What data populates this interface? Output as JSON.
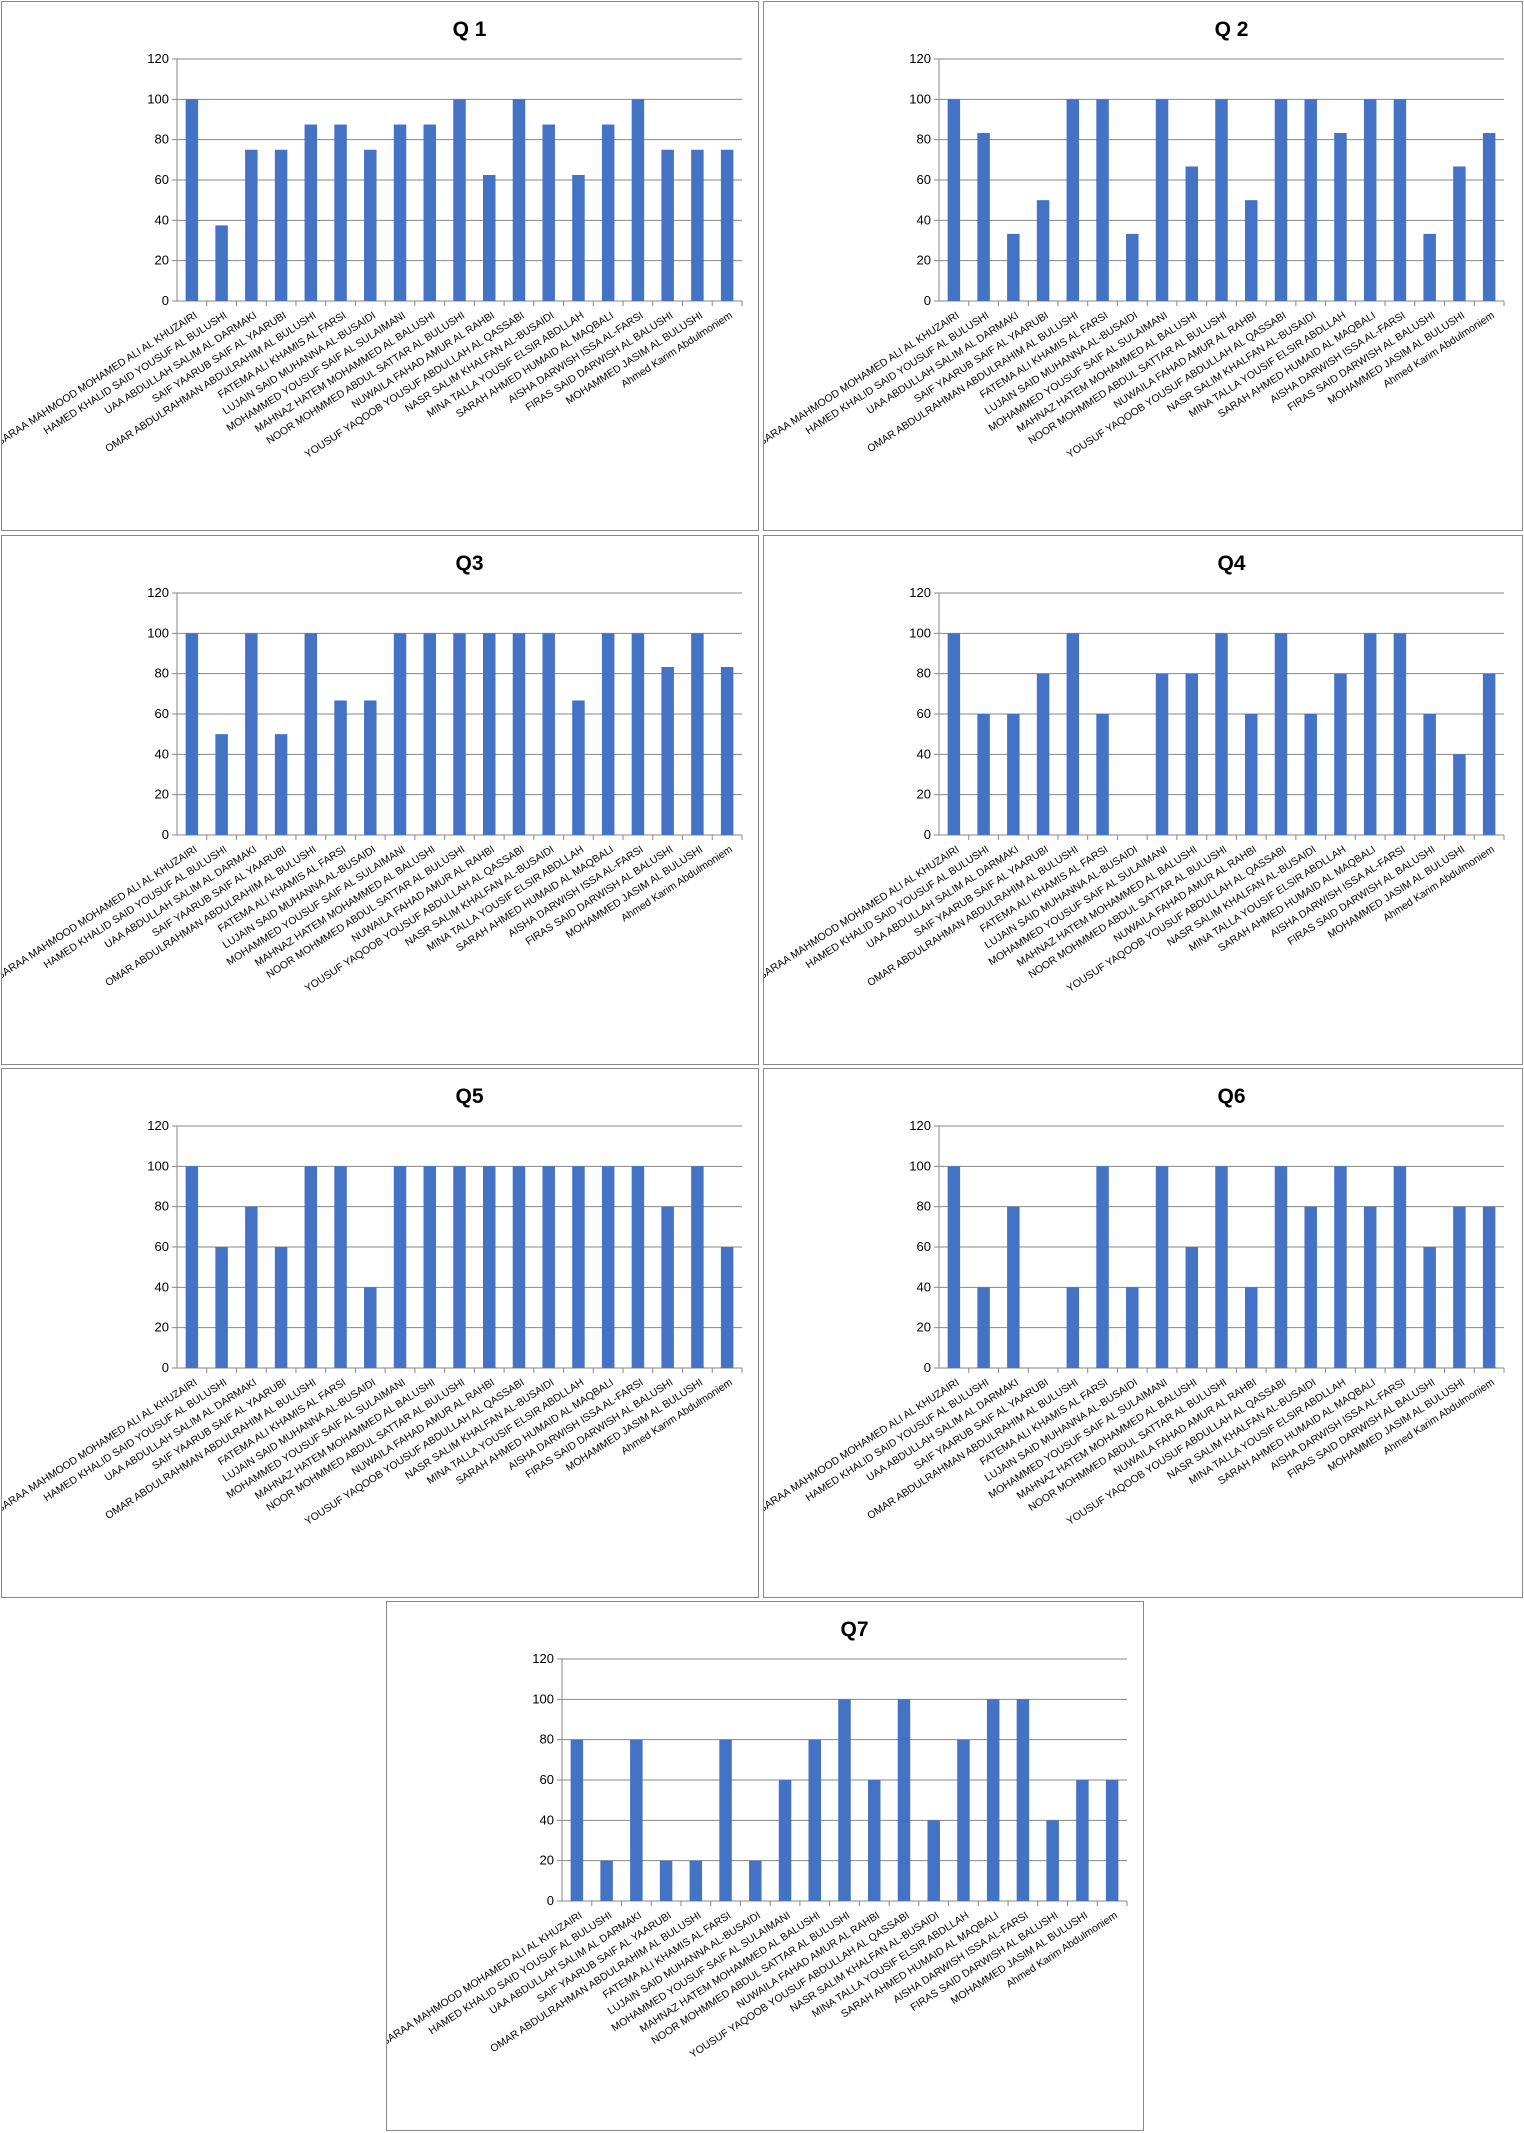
{
  "colors": {
    "bar": "#4472C4",
    "grid": "#878787",
    "border": "#888888"
  },
  "chart_data": [
    {
      "type": "bar",
      "title": "Q 1",
      "ylim": [
        0,
        120
      ],
      "yticks": [
        0,
        20,
        40,
        60,
        80,
        100,
        120
      ],
      "grid": true,
      "series": [
        {
          "values": [
            100,
            37.5,
            75,
            75,
            87.5,
            87.5,
            75,
            87.5,
            87.5,
            100,
            62.5,
            100,
            87.5,
            62.5,
            87.5,
            100,
            75,
            75,
            75
          ]
        }
      ]
    },
    {
      "type": "bar",
      "title": "Q 2",
      "ylim": [
        0,
        120
      ],
      "yticks": [
        0,
        20,
        40,
        60,
        80,
        100,
        120
      ],
      "grid": true,
      "series": [
        {
          "values": [
            100,
            83.3,
            33.3,
            50,
            100,
            100,
            33.3,
            100,
            66.7,
            100,
            50,
            100,
            100,
            83.3,
            100,
            100,
            33.3,
            66.7,
            83.3
          ]
        }
      ]
    },
    {
      "type": "bar",
      "title": "Q3",
      "ylim": [
        0,
        120
      ],
      "yticks": [
        0,
        20,
        40,
        60,
        80,
        100,
        120
      ],
      "grid": true,
      "series": [
        {
          "values": [
            100,
            50,
            100,
            50,
            100,
            66.7,
            66.7,
            100,
            100,
            100,
            100,
            100,
            100,
            66.7,
            100,
            100,
            83.3,
            100,
            83.3
          ]
        }
      ]
    },
    {
      "type": "bar",
      "title": "Q4",
      "ylim": [
        0,
        120
      ],
      "yticks": [
        0,
        20,
        40,
        60,
        80,
        100,
        120
      ],
      "grid": true,
      "series": [
        {
          "values": [
            100,
            60,
            60,
            80,
            100,
            60,
            0,
            80,
            80,
            100,
            60,
            100,
            60,
            80,
            100,
            100,
            60,
            40,
            80
          ]
        }
      ]
    },
    {
      "type": "bar",
      "title": "Q5",
      "ylim": [
        0,
        120
      ],
      "yticks": [
        0,
        20,
        40,
        60,
        80,
        100,
        120
      ],
      "grid": true,
      "series": [
        {
          "values": [
            100,
            60,
            80,
            60,
            100,
            100,
            40,
            100,
            100,
            100,
            100,
            100,
            100,
            100,
            100,
            100,
            80,
            100,
            60
          ]
        }
      ]
    },
    {
      "type": "bar",
      "title": "Q6",
      "ylim": [
        0,
        120
      ],
      "yticks": [
        0,
        20,
        40,
        60,
        80,
        100,
        120
      ],
      "grid": true,
      "series": [
        {
          "values": [
            100,
            40,
            80,
            0,
            40,
            100,
            40,
            100,
            60,
            100,
            40,
            100,
            80,
            100,
            80,
            100,
            60,
            80,
            80
          ]
        }
      ]
    },
    {
      "type": "bar",
      "title": "Q7",
      "ylim": [
        0,
        120
      ],
      "yticks": [
        0,
        20,
        40,
        60,
        80,
        100,
        120
      ],
      "grid": true,
      "series": [
        {
          "values": [
            80,
            20,
            80,
            20,
            20,
            80,
            20,
            60,
            80,
            100,
            60,
            100,
            40,
            80,
            100,
            100,
            40,
            60,
            60
          ]
        }
      ]
    }
  ],
  "categories": [
    "BARAA MAHMOOD MOHAMED ALI AL KHUZAIRI",
    "HAMED KHALID SAID YOUSUF AL BULUSHI",
    "UAA ABDULLAH SALIM AL DARMAKI",
    "SAIF YAARUB SAIF AL YAARUBI",
    "OMAR ABDULRAHMAN ABDULRAHIM AL BULUSHI",
    "FATEMA ALI KHAMIS AL FARSI",
    "LUJAIN SAID MUHANNA AL-BUSAIDI",
    "MOHAMMED YOUSUF SAIF AL SULAIMANI",
    "MAHNAZ HATEM MOHAMMED AL BALUSHI",
    "NOOR MOHMMED ABDUL SATTAR AL BULUSHI",
    "NUWAILA FAHAD AMUR AL RAHBI",
    "YOUSUF YAQOOB YOUSUF ABDULLAH AL QASSABI",
    "NASR SALIM KHALFAN AL-BUSAIDI",
    "MINA TALLA YOUSIF ELSIR ABDLLAH",
    "SARAH AHMED HUMAID AL MAQBALI",
    "AISHA DARWISH ISSA AL-FARSI",
    "FIRAS SAID DARWISH AL BALUSHI",
    "MOHAMMED JASIM AL BULUSHI",
    "Ahmed Karim Abdulmoniem"
  ]
}
